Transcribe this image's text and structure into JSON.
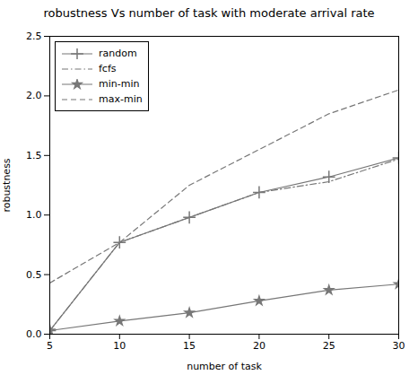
{
  "chart_data": {
    "type": "line",
    "title": "robustness Vs number of task with moderate arrival rate",
    "xlabel": "number of task",
    "ylabel": "robustness",
    "x": [
      5,
      10,
      15,
      20,
      25,
      30
    ],
    "series": [
      {
        "name": "random",
        "color": "#777777",
        "values": [
          0.03,
          0.77,
          0.98,
          1.19,
          1.32,
          1.48
        ],
        "marker": "plus",
        "line_style": "solid"
      },
      {
        "name": "fcfs",
        "color": "#777777",
        "values": [
          0.03,
          0.77,
          0.98,
          1.19,
          1.28,
          1.47
        ],
        "line_style": "dashdot"
      },
      {
        "name": "min-min",
        "color": "#777777",
        "values": [
          0.03,
          0.11,
          0.18,
          0.28,
          0.37,
          0.42
        ],
        "marker": "star",
        "line_style": "solid"
      },
      {
        "name": "max-min",
        "color": "#777777",
        "values": [
          0.43,
          0.77,
          1.25,
          1.55,
          1.85,
          2.05
        ],
        "line_style": "dashed"
      }
    ],
    "xlim": [
      5,
      30
    ],
    "ylim": [
      0,
      2.5
    ],
    "xticks": [
      5,
      10,
      15,
      20,
      25,
      30
    ],
    "yticks": [
      {
        "value": 0,
        "label": "0.0"
      },
      0.5,
      {
        "value": 1.0,
        "label": "1.0"
      },
      1.5,
      {
        "value": 2.0,
        "label": "2.0"
      },
      2.5
    ],
    "legend": "upper left",
    "grid": false
  }
}
